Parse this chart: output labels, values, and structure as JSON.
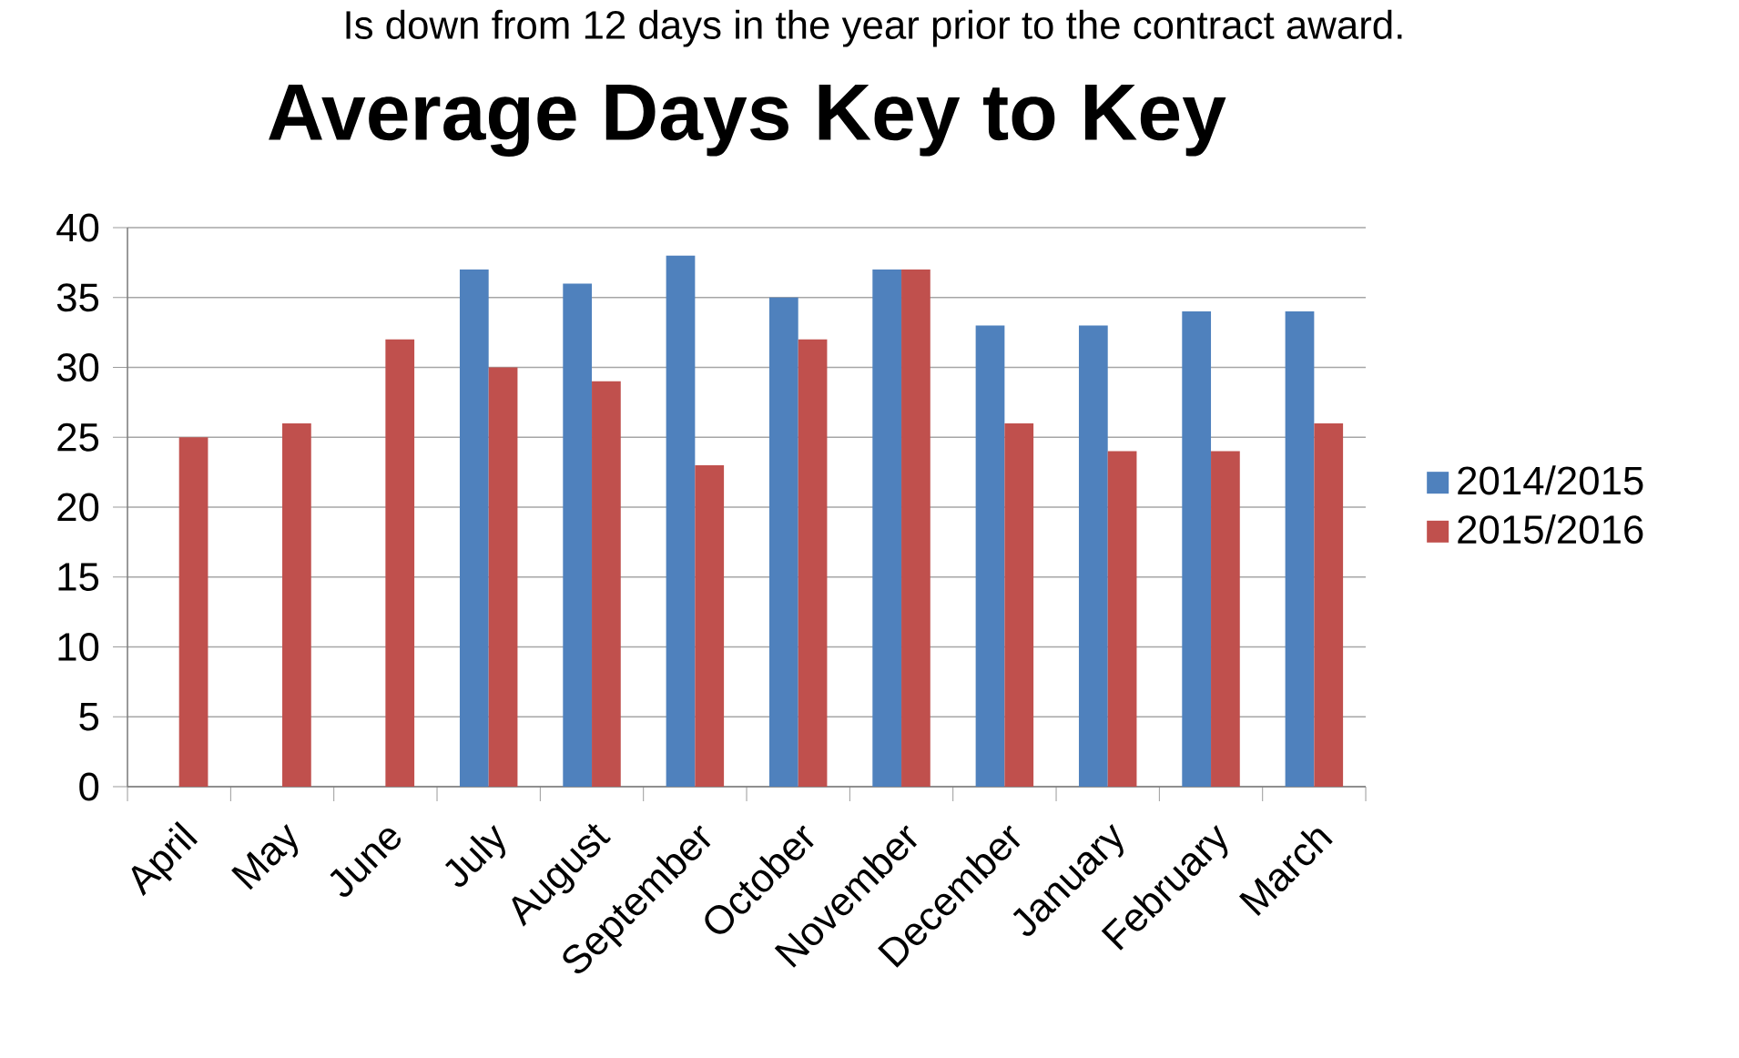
{
  "chart_data": {
    "type": "bar",
    "title": "Average Days Key to Key",
    "annotations": [
      "Is down from 12 days in the year prior to the contract award."
    ],
    "categories": [
      "April",
      "May",
      "June",
      "July",
      "August",
      "September",
      "October",
      "November",
      "December",
      "January",
      "February",
      "March"
    ],
    "series": [
      {
        "name": "2014/2015",
        "color": "#4f81bd",
        "values": [
          null,
          null,
          null,
          37,
          36,
          38,
          35,
          37,
          33,
          33,
          34,
          34
        ]
      },
      {
        "name": "2015/2016",
        "color": "#c0504d",
        "values": [
          25,
          26,
          32,
          30,
          29,
          23,
          32,
          37,
          26,
          24,
          24,
          26
        ]
      }
    ],
    "ylim": [
      0,
      40
    ],
    "yticks": [
      0,
      5,
      10,
      15,
      20,
      25,
      30,
      35,
      40
    ],
    "grid": "y",
    "legend": "right"
  }
}
